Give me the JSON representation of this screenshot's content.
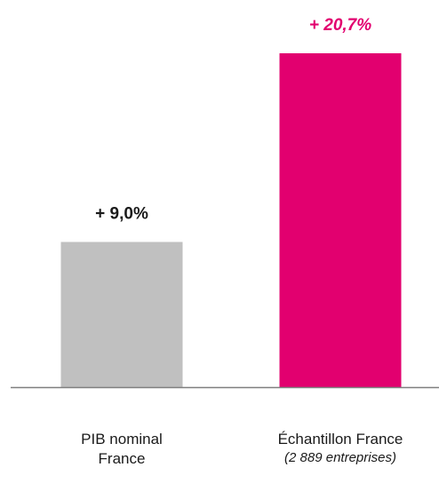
{
  "chart_data": {
    "type": "bar",
    "categories": [
      "PIB nominal France",
      "Échantillon France"
    ],
    "category_lines": [
      [
        "PIB nominal",
        "France"
      ],
      [
        "Échantillon France",
        "(2 889 entreprises)"
      ]
    ],
    "values": [
      9.0,
      20.7
    ],
    "value_labels": [
      "+ 9,0%",
      "+ 20,7%"
    ],
    "colors": [
      "#c0c0c0",
      "#e2006f"
    ],
    "label_colors": [
      "#1a1a1a",
      "#e2006f"
    ],
    "label_italic": [
      false,
      true
    ],
    "axis_color": "#7f7f7f",
    "ylim": [
      0,
      20.7
    ],
    "grid": false,
    "legend": "none"
  }
}
